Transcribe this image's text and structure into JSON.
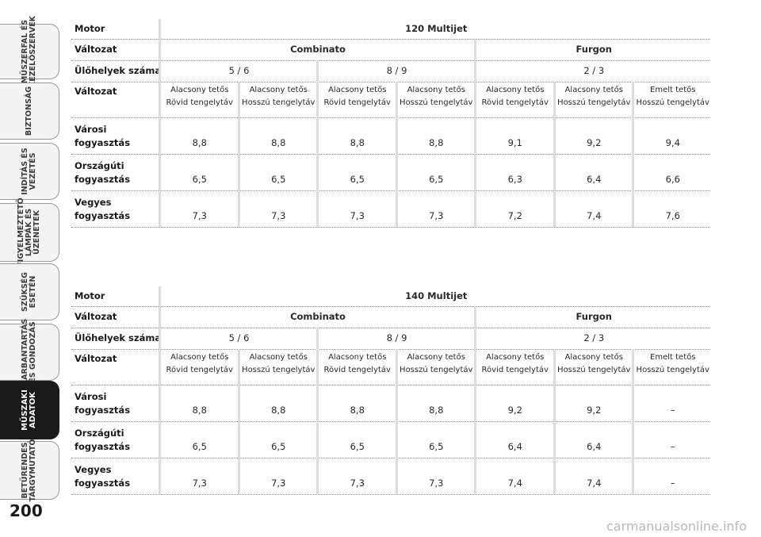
{
  "side_tabs": [
    {
      "label": "MŰSZERFAL ÉS\nKEZELŐSZERVEK",
      "active": false
    },
    {
      "label": "BIZTONSÁG",
      "active": false
    },
    {
      "label": "INDÍTÁS ÉS\nVEZETÉS",
      "active": false
    },
    {
      "label": "FIGYELMEZTETŐ\nLÁMPÁK ÉS\nÜZENETEK",
      "active": false
    },
    {
      "label": "SZÜKSÉG\nESETÉN",
      "active": false
    },
    {
      "label": "KARBANTARTÁS\nÉS GONDOZÁS",
      "active": false
    },
    {
      "label": "MŰSZAKI\nADATOK",
      "active": true
    },
    {
      "label": "BETŰRENDES\nTÁRGYMUTATÓ",
      "active": false
    }
  ],
  "page_number": "200",
  "watermark": "carmanualsonline.info",
  "tables": [
    {
      "motor_label": "Motor",
      "motor_value": "120 Multijet",
      "variant_label": "Változat",
      "variant_combinato": "Combinato",
      "variant_furgon": "Furgon",
      "seats_label": "Ülőhelyek száma",
      "seats": [
        "5 / 6",
        "8 / 9",
        "2 / 3"
      ],
      "version_label": "Változat",
      "versions": [
        {
          "roof": "Alacsony tetős",
          "base": "Rövid tengelytáv"
        },
        {
          "roof": "Alacsony tetős",
          "base": "Hosszú tengelytáv"
        },
        {
          "roof": "Alacsony tetős",
          "base": "Rövid tengelytáv"
        },
        {
          "roof": "Alacsony tetős",
          "base": "Hosszú tengelytáv"
        },
        {
          "roof": "Alacsony tetős",
          "base": "Rövid tengelytáv"
        },
        {
          "roof": "Alacsony tetős",
          "base": "Hosszú tengelytáv"
        },
        {
          "roof": "Emelt tetős",
          "base": "Hosszú tengelytáv"
        }
      ],
      "rows": [
        {
          "label1": "Városi",
          "label2": "fogyasztás",
          "values": [
            "8,8",
            "8,8",
            "8,8",
            "8,8",
            "9,1",
            "9,2",
            "9,4"
          ]
        },
        {
          "label1": "Országúti",
          "label2": "fogyasztás",
          "values": [
            "6,5",
            "6,5",
            "6,5",
            "6,5",
            "6,3",
            "6,4",
            "6,6"
          ]
        },
        {
          "label1": "Vegyes",
          "label2": "fogyasztás",
          "values": [
            "7,3",
            "7,3",
            "7,3",
            "7,3",
            "7,2",
            "7,4",
            "7,6"
          ]
        }
      ]
    },
    {
      "motor_label": "Motor",
      "motor_value": "140 Multijet",
      "variant_label": "Változat",
      "variant_combinato": "Combinato",
      "variant_furgon": "Furgon",
      "seats_label": "Ülőhelyek száma",
      "seats": [
        "5 / 6",
        "8 / 9",
        "2 / 3"
      ],
      "version_label": "Változat",
      "versions": [
        {
          "roof": "Alacsony tetős",
          "base": "Rövid tengelytáv"
        },
        {
          "roof": "Alacsony tetős",
          "base": "Hosszú tengelytáv"
        },
        {
          "roof": "Alacsony tetős",
          "base": "Rövid tengelytáv"
        },
        {
          "roof": "Alacsony tetős",
          "base": "Hosszú tengelytáv"
        },
        {
          "roof": "Alacsony tetős",
          "base": "Rövid tengelytáv"
        },
        {
          "roof": "Alacsony tetős",
          "base": "Hosszú tengelytáv"
        },
        {
          "roof": "Emelt tetős",
          "base": "Hosszú tengelytáv"
        }
      ],
      "rows": [
        {
          "label1": "Városi",
          "label2": "fogyasztás",
          "values": [
            "8,8",
            "8,8",
            "8,8",
            "8,8",
            "9,2",
            "9,2",
            "–"
          ]
        },
        {
          "label1": "Országúti",
          "label2": "fogyasztás",
          "values": [
            "6,5",
            "6,5",
            "6,5",
            "6,5",
            "6,4",
            "6,4",
            "–"
          ]
        },
        {
          "label1": "Vegyes",
          "label2": "fogyasztás",
          "values": [
            "7,3",
            "7,3",
            "7,3",
            "7,3",
            "7,4",
            "7,4",
            "–"
          ]
        }
      ]
    }
  ]
}
